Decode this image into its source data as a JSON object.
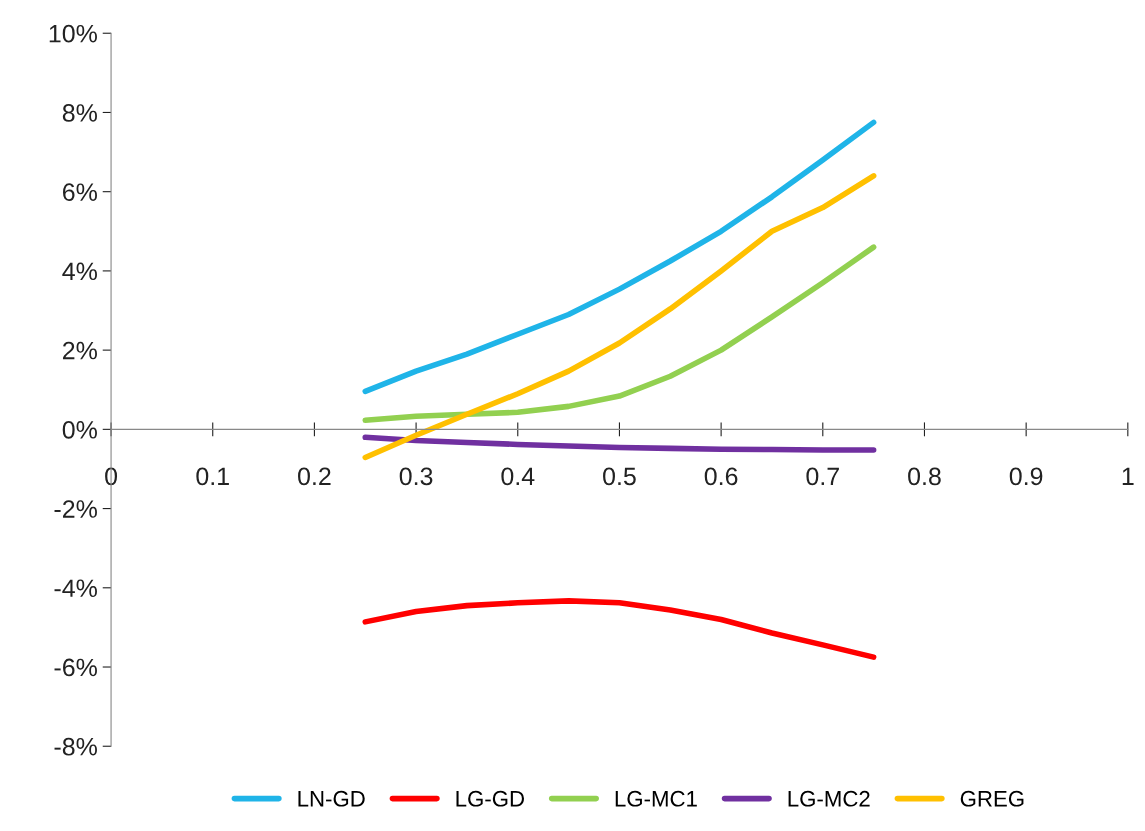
{
  "chart_data": {
    "type": "line",
    "x": [
      0.25,
      0.3,
      0.35,
      0.4,
      0.45,
      0.5,
      0.55,
      0.6,
      0.65,
      0.7,
      0.75
    ],
    "series": [
      {
        "name": "LN-GD",
        "color": "#1fb4e8",
        "values": [
          0.96,
          1.47,
          1.9,
          2.4,
          2.9,
          3.54,
          4.25,
          5.0,
          5.87,
          6.8,
          7.75
        ]
      },
      {
        "name": "LG-GD",
        "color": "#ff0000",
        "values": [
          -4.86,
          -4.6,
          -4.45,
          -4.38,
          -4.33,
          -4.38,
          -4.56,
          -4.8,
          -5.14,
          -5.44,
          -5.75
        ]
      },
      {
        "name": "LG-MC1",
        "color": "#92d050",
        "values": [
          0.23,
          0.33,
          0.38,
          0.43,
          0.58,
          0.84,
          1.34,
          2.0,
          2.84,
          3.7,
          4.6
        ]
      },
      {
        "name": "LG-MC2",
        "color": "#7030a0",
        "values": [
          -0.2,
          -0.28,
          -0.33,
          -0.38,
          -0.42,
          -0.46,
          -0.48,
          -0.5,
          -0.51,
          -0.52,
          -0.52
        ]
      },
      {
        "name": "GREG",
        "color": "#ffc000",
        "values": [
          -0.71,
          -0.15,
          0.38,
          0.9,
          1.47,
          2.18,
          3.04,
          4.0,
          5.0,
          5.6,
          6.4
        ]
      }
    ],
    "xlim": [
      0,
      1
    ],
    "xticks": [
      0,
      0.1,
      0.2,
      0.3,
      0.4,
      0.5,
      0.6,
      0.7,
      0.8,
      0.9,
      1
    ],
    "ylim": [
      -8,
      10
    ],
    "yticks": [
      {
        "value": -8,
        "label": "-8%"
      },
      {
        "value": -6,
        "label": "-6%"
      },
      {
        "value": -4,
        "label": "-4%"
      },
      {
        "value": -2,
        "label": "-2%"
      },
      {
        "value": 0,
        "label": "0%"
      },
      {
        "value": 2,
        "label": "2%"
      },
      {
        "value": 4,
        "label": "4%"
      },
      {
        "value": 6,
        "label": "6%"
      },
      {
        "value": 8,
        "label": "8%"
      },
      {
        "value": 10,
        "label": "10%"
      }
    ],
    "grid": false,
    "legend": "bottom",
    "marker": "none",
    "line_style": "solid"
  }
}
